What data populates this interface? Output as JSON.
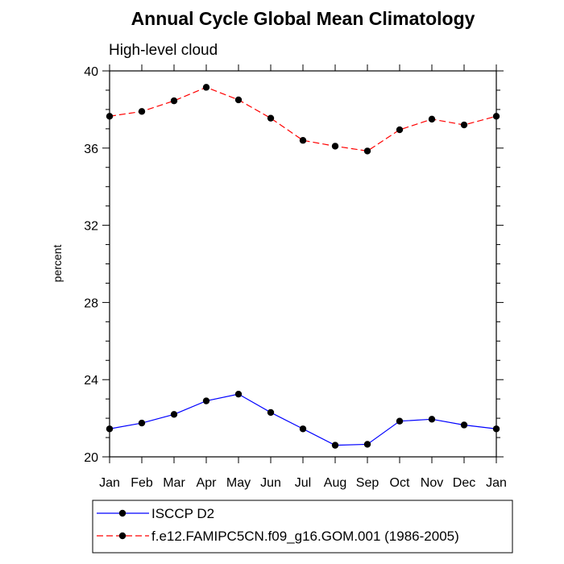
{
  "chart_data": {
    "type": "line",
    "title": "Annual Cycle Global Mean Climatology",
    "subtitle": "High-level cloud",
    "xlabel": "",
    "ylabel": "percent",
    "categories": [
      "Jan",
      "Feb",
      "Mar",
      "Apr",
      "May",
      "Jun",
      "Jul",
      "Aug",
      "Sep",
      "Oct",
      "Nov",
      "Dec",
      "Jan"
    ],
    "ylim": [
      20,
      40
    ],
    "yticks": [
      20,
      24,
      28,
      32,
      36,
      40
    ],
    "grid": false,
    "legend_position": "bottom-left",
    "series": [
      {
        "name": "ISCCP D2",
        "color": "#0000ff",
        "line_style": "solid",
        "values": [
          21.45,
          21.75,
          22.2,
          22.9,
          23.25,
          22.3,
          21.45,
          20.6,
          20.65,
          21.85,
          21.95,
          21.65,
          21.45
        ]
      },
      {
        "name": "f.e12.FAMIPC5CN.f09_g16.GOM.001 (1986-2005)",
        "color": "#ff0000",
        "line_style": "dashed",
        "values": [
          37.65,
          37.9,
          38.45,
          39.15,
          38.5,
          37.55,
          36.4,
          36.1,
          35.85,
          36.95,
          37.5,
          37.2,
          37.65
        ]
      }
    ]
  }
}
